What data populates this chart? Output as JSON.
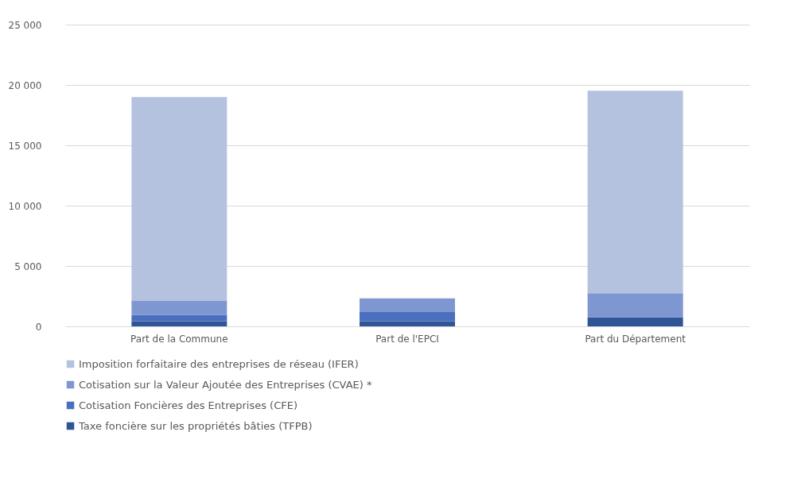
{
  "chart_data": {
    "type": "bar",
    "stacked": true,
    "categories": [
      "Part de la Commune",
      "Part de l'EPCI",
      "Part du Département"
    ],
    "series": [
      {
        "name": "Taxe foncière sur les propriétés bâties (TFPB)",
        "color": "#2f5597",
        "values": [
          430,
          430,
          750
        ]
      },
      {
        "name": "Cotisation Foncières des Entreprises (CFE)",
        "color": "#4a6fbf",
        "values": [
          500,
          750,
          0
        ]
      },
      {
        "name": "Cotisation sur la Valeur Ajoutée des Entreprises (CVAE) *",
        "color": "#7f97d1",
        "values": [
          1170,
          1140,
          1990
        ]
      },
      {
        "name": "Imposition forfaitaire des entreprises de réseau (IFER)",
        "color": "#b4c2e0",
        "values": [
          16900,
          0,
          16780
        ]
      }
    ],
    "ylim": [
      0,
      25000
    ],
    "yticks": [
      {
        "value": 0,
        "label": "0"
      },
      {
        "value": 5000,
        "label": "5 000"
      },
      {
        "value": 10000,
        "label": "10 000"
      },
      {
        "value": 15000,
        "label": "15 000"
      },
      {
        "value": 20000,
        "label": "20 000"
      },
      {
        "value": 25000,
        "label": "25 000"
      }
    ],
    "grid": "y",
    "legend": "bottom"
  }
}
